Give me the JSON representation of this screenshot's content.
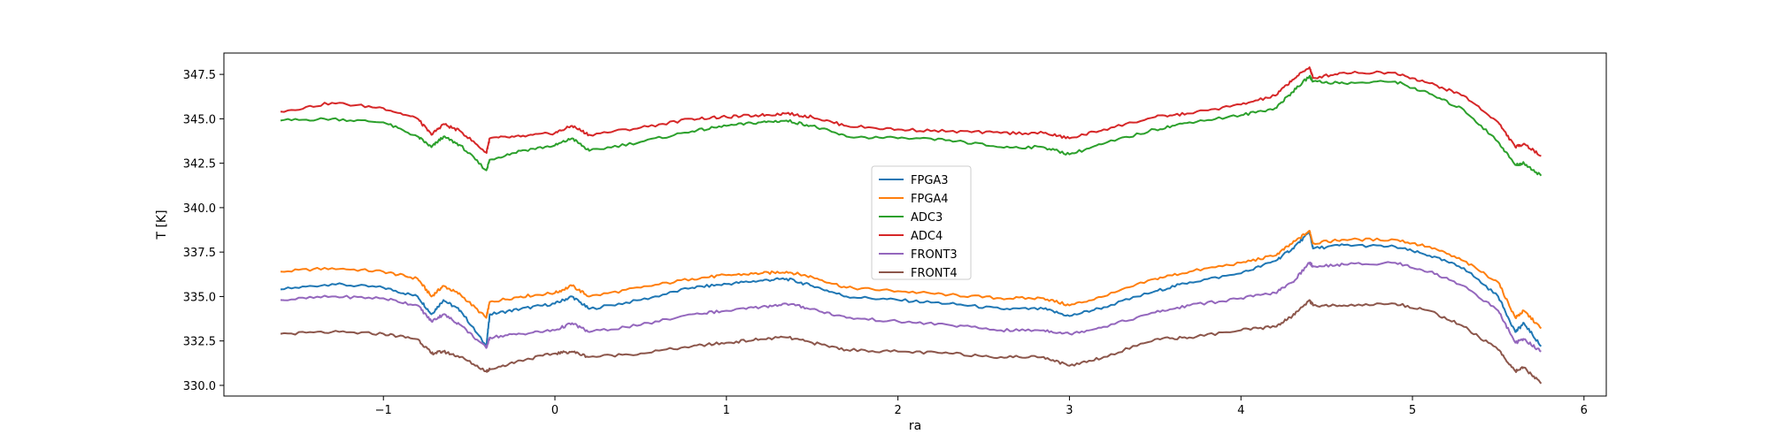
{
  "chart_data": {
    "type": "line",
    "xlabel": "ra",
    "ylabel": "T [K]",
    "xlim": [
      -1.93,
      6.13
    ],
    "ylim": [
      329.4,
      348.7
    ],
    "xticks": [
      -1,
      0,
      1,
      2,
      3,
      4,
      5,
      6
    ],
    "yticks": [
      330.0,
      332.5,
      335.0,
      337.5,
      340.0,
      342.5,
      345.0,
      347.5
    ],
    "grid": false,
    "legend_position": "center",
    "series": [
      {
        "name": "FPGA3",
        "color": "#1f77b4",
        "x": [
          -1.6,
          -1.3,
          -1.0,
          -0.8,
          -0.72,
          -0.65,
          -0.55,
          -0.4,
          -0.38,
          -0.2,
          0.0,
          0.1,
          0.2,
          0.5,
          0.8,
          1.0,
          1.2,
          1.35,
          1.5,
          1.7,
          2.0,
          2.3,
          2.6,
          2.85,
          3.0,
          3.2,
          3.5,
          3.7,
          4.0,
          4.2,
          4.3,
          4.4,
          4.42,
          4.6,
          4.9,
          5.1,
          5.3,
          5.5,
          5.6,
          5.65,
          5.75
        ],
        "y": [
          335.4,
          335.7,
          335.5,
          335.0,
          334.0,
          334.8,
          334.2,
          332.2,
          334.0,
          334.3,
          334.6,
          335.0,
          334.3,
          334.8,
          335.5,
          335.7,
          335.9,
          336.0,
          335.6,
          335.0,
          334.8,
          334.6,
          334.3,
          334.3,
          333.9,
          334.4,
          335.3,
          335.8,
          336.3,
          337.0,
          337.7,
          338.6,
          337.7,
          337.9,
          337.8,
          337.3,
          336.6,
          335.0,
          333.0,
          333.5,
          332.2
        ]
      },
      {
        "name": "FPGA4",
        "color": "#ff7f0e",
        "x": [
          -1.6,
          -1.3,
          -1.0,
          -0.8,
          -0.72,
          -0.65,
          -0.55,
          -0.4,
          -0.38,
          -0.2,
          0.0,
          0.1,
          0.2,
          0.5,
          0.8,
          1.0,
          1.2,
          1.35,
          1.5,
          1.7,
          2.0,
          2.3,
          2.6,
          2.85,
          3.0,
          3.2,
          3.5,
          3.7,
          4.0,
          4.2,
          4.3,
          4.4,
          4.42,
          4.6,
          4.9,
          5.1,
          5.3,
          5.5,
          5.6,
          5.65,
          5.75
        ],
        "y": [
          336.4,
          336.6,
          336.4,
          336.0,
          335.0,
          335.6,
          335.1,
          333.8,
          334.7,
          335.0,
          335.2,
          335.6,
          335.0,
          335.5,
          336.0,
          336.2,
          336.3,
          336.4,
          336.1,
          335.5,
          335.3,
          335.1,
          334.9,
          334.9,
          334.5,
          335.0,
          336.0,
          336.4,
          336.9,
          337.3,
          338.0,
          338.7,
          338.0,
          338.2,
          338.2,
          337.8,
          337.0,
          335.8,
          333.8,
          334.2,
          333.2
        ]
      },
      {
        "name": "ADC3",
        "color": "#2ca02c",
        "x": [
          -1.6,
          -1.3,
          -1.0,
          -0.8,
          -0.72,
          -0.65,
          -0.55,
          -0.4,
          -0.38,
          -0.2,
          0.0,
          0.1,
          0.2,
          0.5,
          0.8,
          1.0,
          1.2,
          1.35,
          1.5,
          1.7,
          2.0,
          2.3,
          2.6,
          2.85,
          3.0,
          3.2,
          3.5,
          3.7,
          4.0,
          4.2,
          4.3,
          4.4,
          4.42,
          4.6,
          4.9,
          5.1,
          5.3,
          5.5,
          5.6,
          5.65,
          5.75
        ],
        "y": [
          344.9,
          345.0,
          344.8,
          344.0,
          343.4,
          344.0,
          343.5,
          342.1,
          342.7,
          343.2,
          343.5,
          343.9,
          343.2,
          343.7,
          344.3,
          344.6,
          344.8,
          344.9,
          344.6,
          344.0,
          343.9,
          343.8,
          343.4,
          343.4,
          343.0,
          343.6,
          344.4,
          344.8,
          345.2,
          345.6,
          346.5,
          347.4,
          347.1,
          347.0,
          347.1,
          346.4,
          345.5,
          343.7,
          342.4,
          342.5,
          341.8
        ]
      },
      {
        "name": "ADC4",
        "color": "#d62728",
        "x": [
          -1.6,
          -1.3,
          -1.0,
          -0.8,
          -0.72,
          -0.65,
          -0.55,
          -0.4,
          -0.38,
          -0.2,
          0.0,
          0.1,
          0.2,
          0.5,
          0.8,
          1.0,
          1.2,
          1.35,
          1.5,
          1.7,
          2.0,
          2.3,
          2.6,
          2.85,
          3.0,
          3.2,
          3.5,
          3.7,
          4.0,
          4.2,
          4.3,
          4.4,
          4.42,
          4.6,
          4.9,
          5.1,
          5.3,
          5.5,
          5.6,
          5.65,
          5.75
        ],
        "y": [
          345.4,
          345.9,
          345.6,
          345.0,
          344.1,
          344.7,
          344.3,
          343.1,
          343.9,
          344.0,
          344.2,
          344.6,
          344.1,
          344.5,
          345.0,
          345.1,
          345.2,
          345.3,
          345.1,
          344.6,
          344.4,
          344.3,
          344.2,
          344.2,
          343.9,
          344.4,
          345.1,
          345.3,
          345.8,
          346.3,
          347.2,
          347.9,
          347.3,
          347.6,
          347.6,
          347.0,
          346.3,
          344.8,
          343.4,
          343.6,
          342.9
        ]
      },
      {
        "name": "FRONT3",
        "color": "#9467bd",
        "x": [
          -1.6,
          -1.3,
          -1.0,
          -0.8,
          -0.72,
          -0.65,
          -0.55,
          -0.4,
          -0.38,
          -0.2,
          0.0,
          0.1,
          0.2,
          0.5,
          0.8,
          1.0,
          1.2,
          1.35,
          1.5,
          1.7,
          2.0,
          2.3,
          2.6,
          2.85,
          3.0,
          3.2,
          3.5,
          3.7,
          4.0,
          4.2,
          4.3,
          4.4,
          4.42,
          4.6,
          4.9,
          5.1,
          5.3,
          5.5,
          5.6,
          5.65,
          5.75
        ],
        "y": [
          334.8,
          335.0,
          334.9,
          334.5,
          333.6,
          334.0,
          333.4,
          332.1,
          332.7,
          332.9,
          333.1,
          333.5,
          333.0,
          333.4,
          334.0,
          334.2,
          334.4,
          334.6,
          334.3,
          333.8,
          333.6,
          333.4,
          333.1,
          333.1,
          332.9,
          333.3,
          334.1,
          334.5,
          334.9,
          335.2,
          335.8,
          336.9,
          336.7,
          336.8,
          336.9,
          336.4,
          335.6,
          334.2,
          332.4,
          332.6,
          331.9
        ]
      },
      {
        "name": "FRONT4",
        "color": "#8c564b",
        "x": [
          -1.6,
          -1.3,
          -1.0,
          -0.8,
          -0.72,
          -0.65,
          -0.55,
          -0.4,
          -0.38,
          -0.2,
          0.0,
          0.1,
          0.2,
          0.5,
          0.8,
          1.0,
          1.2,
          1.35,
          1.5,
          1.7,
          2.0,
          2.3,
          2.6,
          2.85,
          3.0,
          3.2,
          3.5,
          3.7,
          4.0,
          4.2,
          4.3,
          4.4,
          4.42,
          4.6,
          4.9,
          5.1,
          5.3,
          5.5,
          5.6,
          5.65,
          5.75
        ],
        "y": [
          332.9,
          333.0,
          332.9,
          332.6,
          331.8,
          331.9,
          331.6,
          330.8,
          330.9,
          331.4,
          331.8,
          331.9,
          331.6,
          331.8,
          332.2,
          332.4,
          332.6,
          332.7,
          332.4,
          332.0,
          331.9,
          331.8,
          331.6,
          331.6,
          331.1,
          331.6,
          332.6,
          332.7,
          333.1,
          333.3,
          333.9,
          334.8,
          334.5,
          334.5,
          334.6,
          334.2,
          333.3,
          332.0,
          330.8,
          331.0,
          330.1
        ]
      }
    ]
  }
}
